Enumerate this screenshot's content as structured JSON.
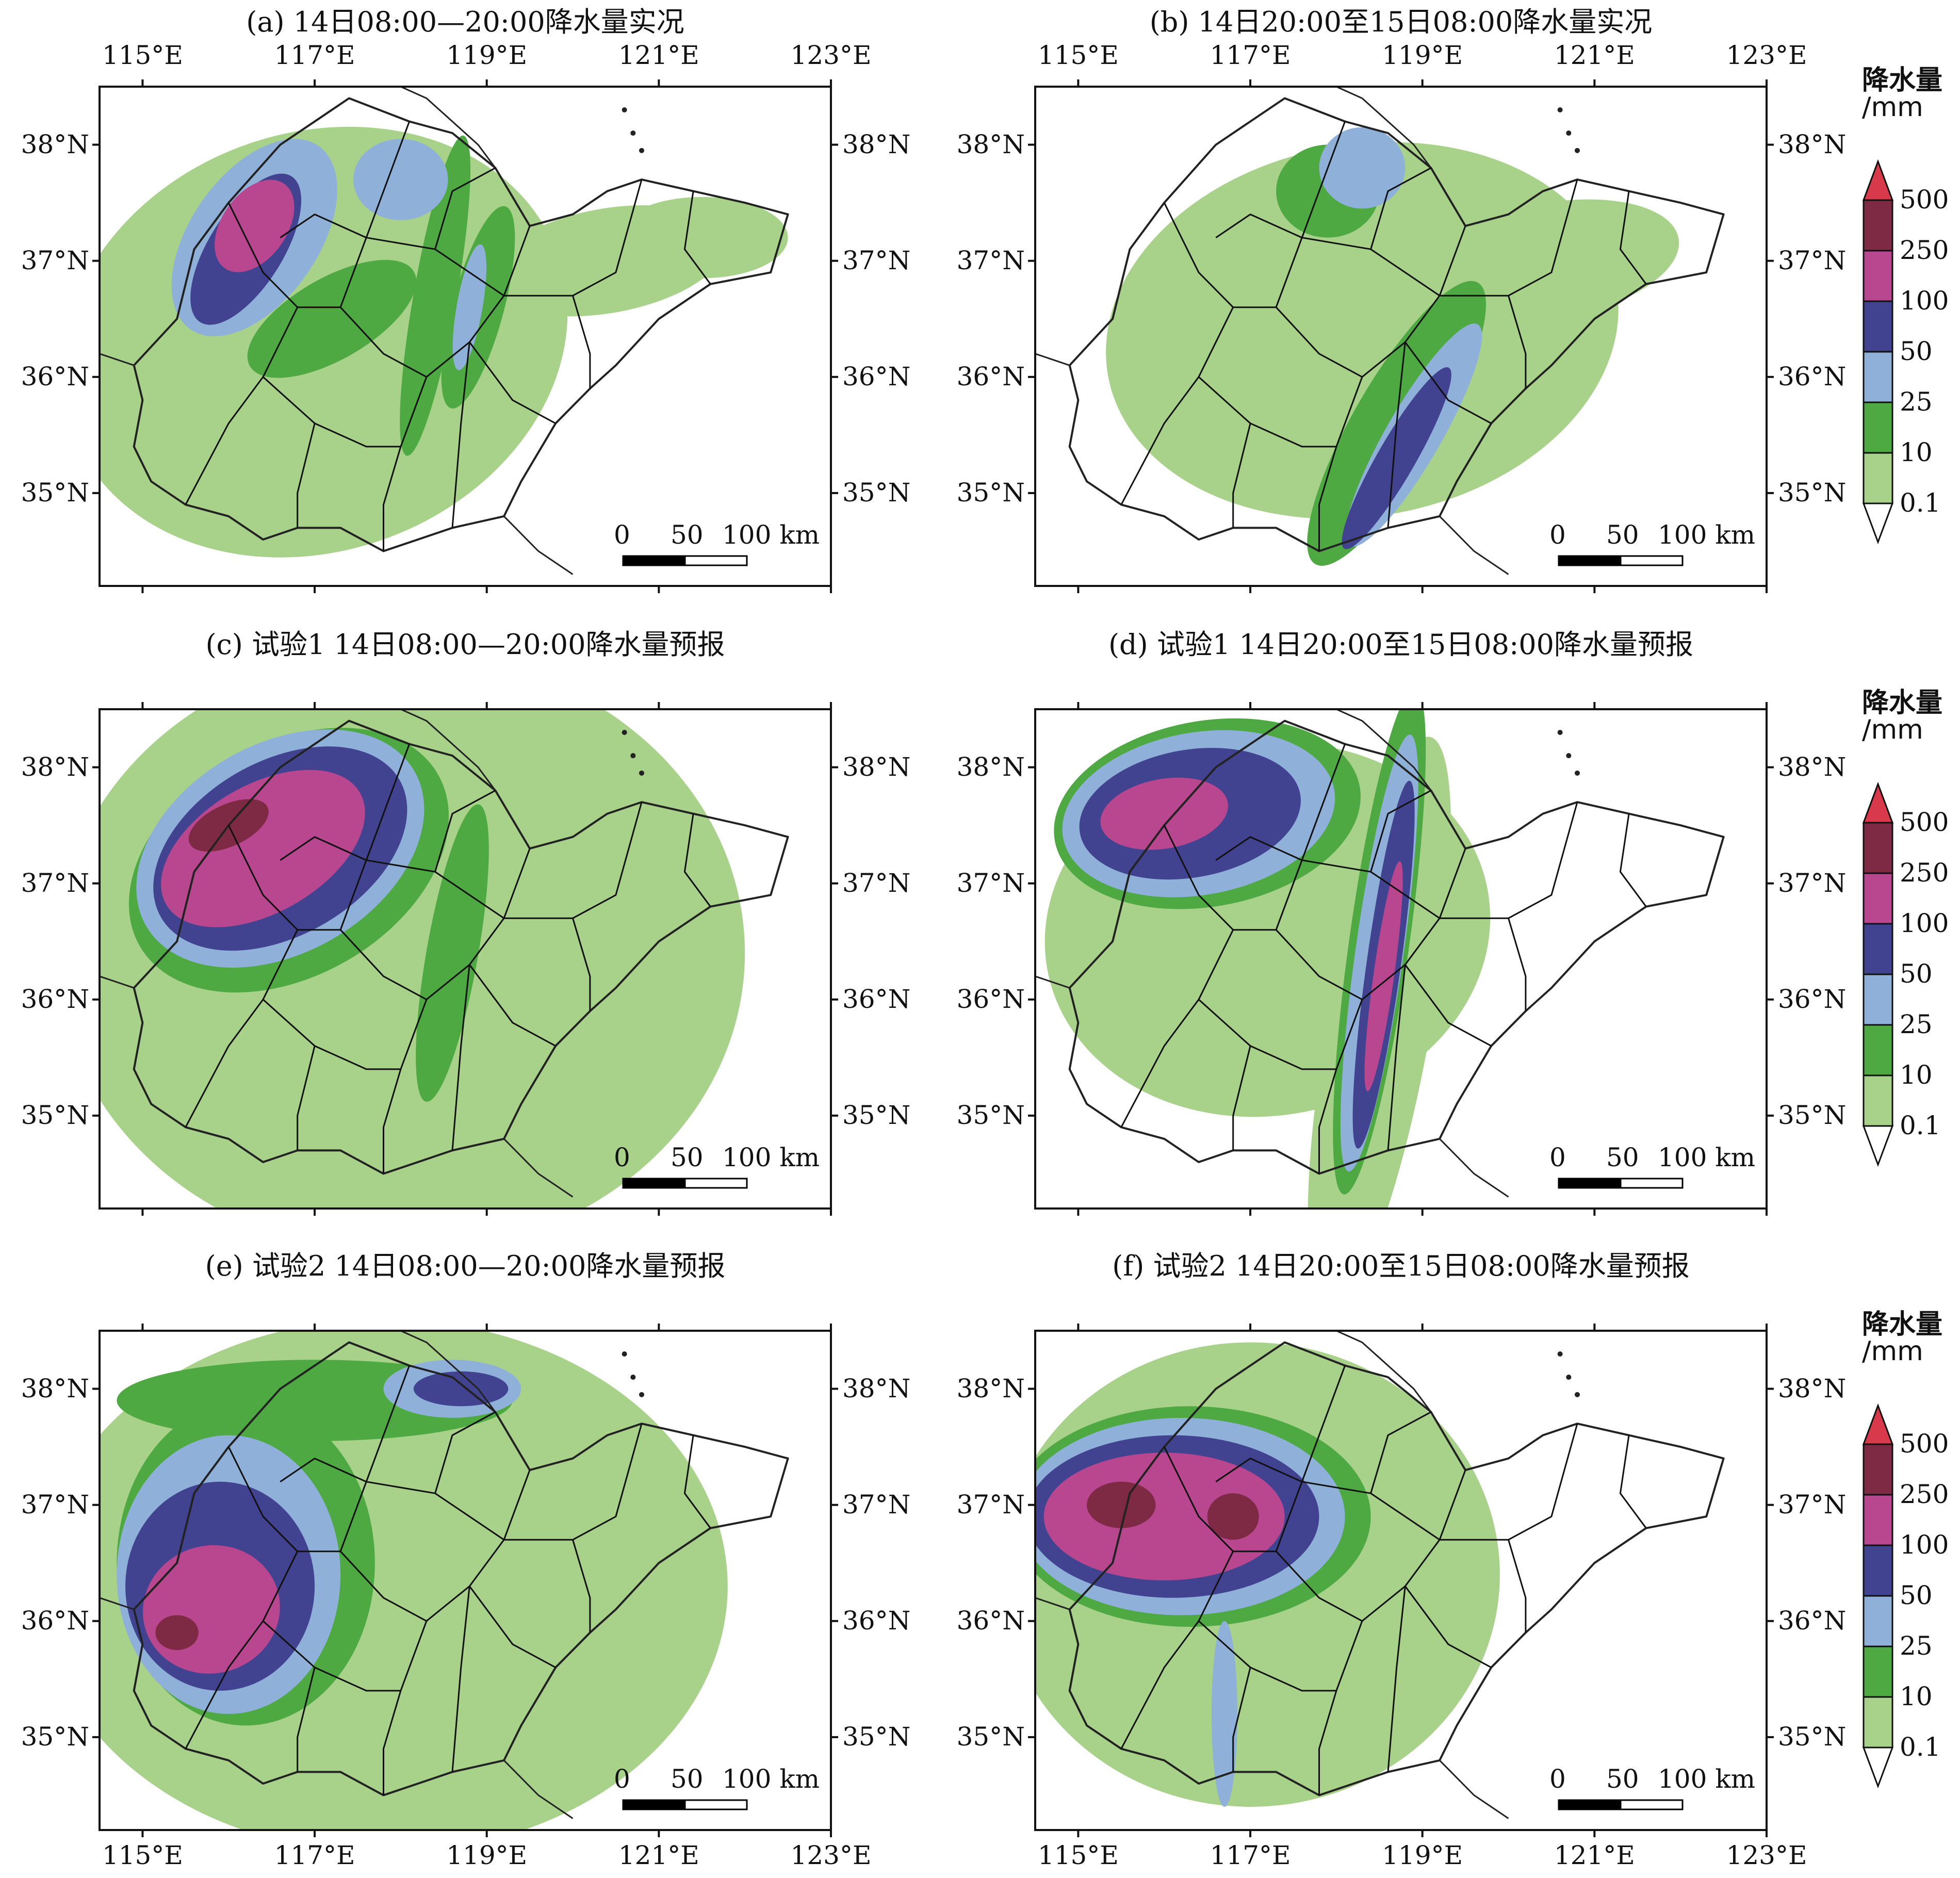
{
  "figure": {
    "panels": [
      {
        "title": "(a) 14日08:00—20:00降水量实况",
        "rain": [
          {
            "lvl": 1,
            "cx": 117.0,
            "cy": 36.3,
            "rx": 3.0,
            "ry": 1.8,
            "rot": -20
          },
          {
            "lvl": 1,
            "cx": 120.4,
            "cy": 37.0,
            "rx": 1.4,
            "ry": 0.45,
            "rot": -10
          },
          {
            "lvl": 1,
            "cx": 121.5,
            "cy": 37.2,
            "rx": 1.0,
            "ry": 0.35,
            "rot": 0
          },
          {
            "lvl": 2,
            "cx": 118.4,
            "cy": 36.7,
            "rx": 0.25,
            "ry": 1.4,
            "rot": 10
          },
          {
            "lvl": 2,
            "cx": 117.2,
            "cy": 36.5,
            "rx": 1.1,
            "ry": 0.35,
            "rot": -30
          },
          {
            "lvl": 2,
            "cx": 118.9,
            "cy": 36.6,
            "rx": 0.3,
            "ry": 0.9,
            "rot": 15
          },
          {
            "lvl": 3,
            "cx": 116.3,
            "cy": 37.2,
            "rx": 1.3,
            "ry": 0.55,
            "rot": -55
          },
          {
            "lvl": 3,
            "cx": 118.0,
            "cy": 37.7,
            "rx": 0.55,
            "ry": 0.35,
            "rot": 0
          },
          {
            "lvl": 3,
            "cx": 118.8,
            "cy": 36.6,
            "rx": 0.15,
            "ry": 0.55,
            "rot": 10
          },
          {
            "lvl": 4,
            "cx": 116.2,
            "cy": 37.1,
            "rx": 1.0,
            "ry": 0.32,
            "rot": -58
          },
          {
            "lvl": 5,
            "cx": 116.3,
            "cy": 37.3,
            "rx": 0.6,
            "ry": 0.28,
            "rot": -55
          }
        ]
      },
      {
        "title": "(b) 14日20:00至15日08:00降水量实况",
        "rain": [
          {
            "lvl": 1,
            "cx": 118.3,
            "cy": 36.4,
            "rx": 3.0,
            "ry": 1.6,
            "rot": -10
          },
          {
            "lvl": 1,
            "cx": 120.5,
            "cy": 37.0,
            "rx": 1.5,
            "ry": 0.5,
            "rot": -10
          },
          {
            "lvl": 2,
            "cx": 118.7,
            "cy": 35.6,
            "rx": 0.5,
            "ry": 1.4,
            "rot": 30
          },
          {
            "lvl": 2,
            "cx": 117.9,
            "cy": 37.6,
            "rx": 0.6,
            "ry": 0.4,
            "rot": 0
          },
          {
            "lvl": 3,
            "cx": 118.3,
            "cy": 37.8,
            "rx": 0.5,
            "ry": 0.35,
            "rot": 0
          },
          {
            "lvl": 3,
            "cx": 118.9,
            "cy": 35.5,
            "rx": 0.32,
            "ry": 1.1,
            "rot": 30
          },
          {
            "lvl": 4,
            "cx": 118.7,
            "cy": 35.3,
            "rx": 0.22,
            "ry": 0.9,
            "rot": 30
          }
        ]
      },
      {
        "title": "(c) 试验1  14日08:00—20:00降水量预报",
        "rain": [
          {
            "lvl": 1,
            "cx": 118.0,
            "cy": 36.4,
            "rx": 4.0,
            "ry": 2.6,
            "rot": 0
          },
          {
            "lvl": 2,
            "cx": 116.7,
            "cy": 37.2,
            "rx": 2.0,
            "ry": 1.0,
            "rot": -30
          },
          {
            "lvl": 2,
            "cx": 118.6,
            "cy": 36.4,
            "rx": 0.3,
            "ry": 1.3,
            "rot": 10
          },
          {
            "lvl": 3,
            "cx": 116.6,
            "cy": 37.3,
            "rx": 1.8,
            "ry": 0.9,
            "rot": -30
          },
          {
            "lvl": 4,
            "cx": 116.6,
            "cy": 37.3,
            "rx": 1.6,
            "ry": 0.75,
            "rot": -30
          },
          {
            "lvl": 5,
            "cx": 116.4,
            "cy": 37.3,
            "rx": 1.3,
            "ry": 0.55,
            "rot": -30
          },
          {
            "lvl": 6,
            "cx": 116.0,
            "cy": 37.5,
            "rx": 0.5,
            "ry": 0.18,
            "rot": -25
          }
        ]
      },
      {
        "title": "(d) 试验1  14日20:00至15日08:00降水量预报",
        "rain": [
          {
            "lvl": 1,
            "cx": 117.2,
            "cy": 36.6,
            "rx": 2.6,
            "ry": 1.6,
            "rot": -10
          },
          {
            "lvl": 1,
            "cx": 118.5,
            "cy": 35.8,
            "rx": 0.6,
            "ry": 2.5,
            "rot": 10
          },
          {
            "lvl": 2,
            "cx": 116.5,
            "cy": 37.6,
            "rx": 1.8,
            "ry": 0.8,
            "rot": -10
          },
          {
            "lvl": 2,
            "cx": 118.5,
            "cy": 36.5,
            "rx": 0.35,
            "ry": 2.2,
            "rot": 8
          },
          {
            "lvl": 3,
            "cx": 116.4,
            "cy": 37.6,
            "rx": 1.6,
            "ry": 0.7,
            "rot": -10
          },
          {
            "lvl": 3,
            "cx": 118.5,
            "cy": 36.4,
            "rx": 0.28,
            "ry": 1.9,
            "rot": 8
          },
          {
            "lvl": 4,
            "cx": 116.3,
            "cy": 37.6,
            "rx": 1.3,
            "ry": 0.55,
            "rot": -10
          },
          {
            "lvl": 4,
            "cx": 118.55,
            "cy": 36.3,
            "rx": 0.2,
            "ry": 1.6,
            "rot": 8
          },
          {
            "lvl": 5,
            "cx": 116.0,
            "cy": 37.6,
            "rx": 0.75,
            "ry": 0.3,
            "rot": -10
          },
          {
            "lvl": 5,
            "cx": 118.55,
            "cy": 36.2,
            "rx": 0.12,
            "ry": 1.0,
            "rot": 8
          }
        ]
      },
      {
        "title": "(e) 试验2  14日08:00—20:00降水量预报",
        "rain": [
          {
            "lvl": 1,
            "cx": 117.8,
            "cy": 36.3,
            "rx": 4.0,
            "ry": 2.3,
            "rot": 0
          },
          {
            "lvl": 2,
            "cx": 116.2,
            "cy": 36.5,
            "rx": 1.5,
            "ry": 1.4,
            "rot": 0
          },
          {
            "lvl": 2,
            "cx": 117.0,
            "cy": 37.9,
            "rx": 2.3,
            "ry": 0.35,
            "rot": 0
          },
          {
            "lvl": 3,
            "cx": 116.0,
            "cy": 36.4,
            "rx": 1.3,
            "ry": 1.2,
            "rot": 0
          },
          {
            "lvl": 3,
            "cx": 118.6,
            "cy": 38.0,
            "rx": 0.8,
            "ry": 0.25,
            "rot": 0
          },
          {
            "lvl": 4,
            "cx": 115.9,
            "cy": 36.3,
            "rx": 1.1,
            "ry": 0.9,
            "rot": 0
          },
          {
            "lvl": 4,
            "cx": 118.7,
            "cy": 38.0,
            "rx": 0.55,
            "ry": 0.15,
            "rot": 0
          },
          {
            "lvl": 5,
            "cx": 115.8,
            "cy": 36.1,
            "rx": 0.8,
            "ry": 0.55,
            "rot": -15
          },
          {
            "lvl": 6,
            "cx": 115.4,
            "cy": 35.9,
            "rx": 0.25,
            "ry": 0.15,
            "rot": 0
          }
        ]
      },
      {
        "title": "(f) 试验2  14日20:00至15日08:00降水量预报",
        "rain": [
          {
            "lvl": 1,
            "cx": 117.0,
            "cy": 36.4,
            "rx": 2.9,
            "ry": 2.0,
            "rot": 0
          },
          {
            "lvl": 2,
            "cx": 116.3,
            "cy": 36.9,
            "rx": 2.1,
            "ry": 0.95,
            "rot": 0
          },
          {
            "lvl": 3,
            "cx": 116.2,
            "cy": 36.9,
            "rx": 1.9,
            "ry": 0.85,
            "rot": 0
          },
          {
            "lvl": 3,
            "cx": 116.7,
            "cy": 35.2,
            "rx": 0.15,
            "ry": 0.8,
            "rot": 0
          },
          {
            "lvl": 4,
            "cx": 116.1,
            "cy": 36.9,
            "rx": 1.7,
            "ry": 0.7,
            "rot": 0
          },
          {
            "lvl": 5,
            "cx": 116.0,
            "cy": 36.9,
            "rx": 1.4,
            "ry": 0.55,
            "rot": 0
          },
          {
            "lvl": 6,
            "cx": 115.5,
            "cy": 37.0,
            "rx": 0.4,
            "ry": 0.2,
            "rot": 0
          },
          {
            "lvl": 6,
            "cx": 116.8,
            "cy": 36.9,
            "rx": 0.3,
            "ry": 0.2,
            "rot": 0
          }
        ]
      }
    ],
    "axes": {
      "lon_ticks": [
        {
          "value": 115,
          "label": "115°E"
        },
        {
          "value": 117,
          "label": "117°E"
        },
        {
          "value": 119,
          "label": "119°E"
        },
        {
          "value": 121,
          "label": "121°E"
        },
        {
          "value": 123,
          "label": "123°E"
        }
      ],
      "lat_ticks": [
        {
          "value": 38,
          "label": "38°N"
        },
        {
          "value": 37,
          "label": "37°N"
        },
        {
          "value": 36,
          "label": "36°N"
        },
        {
          "value": 35,
          "label": "35°N"
        }
      ],
      "lon_range": [
        114.5,
        123.0
      ],
      "lat_range": [
        34.2,
        38.5
      ]
    },
    "legend": {
      "title_line1": "降水量",
      "title_line2": "/mm",
      "levels": [
        "0.1",
        "10",
        "25",
        "50",
        "100",
        "250",
        "500"
      ],
      "colors": [
        "#a8d18a",
        "#4ea942",
        "#8fb0d8",
        "#414391",
        "#b8478f",
        "#7e2a45"
      ],
      "over_color": "#d83a4b",
      "under_color": "#ffffff"
    },
    "scalebar": {
      "labels": [
        "0",
        "50",
        "100 km"
      ]
    },
    "coastline_color": "#222222",
    "border_color": "#111111"
  }
}
